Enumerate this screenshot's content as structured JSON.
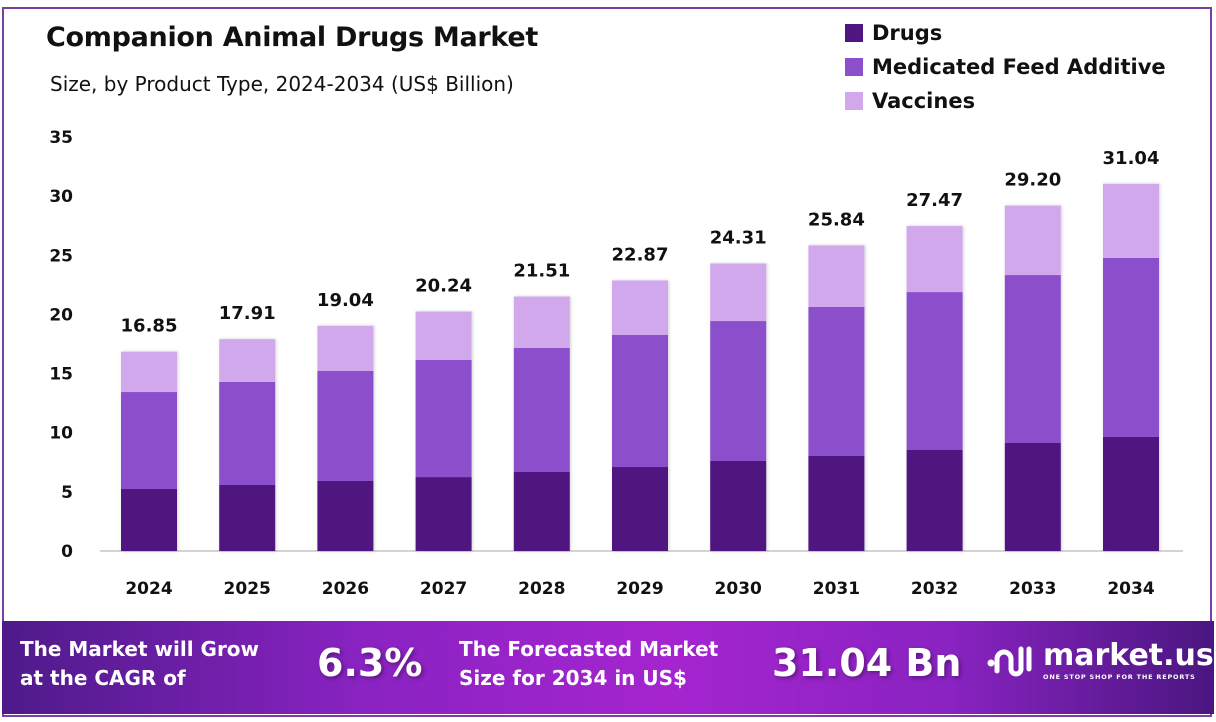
{
  "header": {
    "title": "Companion Animal Drugs Market",
    "subtitle": "Size, by Product Type, 2024-2034 (US$ Billion)"
  },
  "legend": [
    {
      "label": "Drugs",
      "color": "#4f1680"
    },
    {
      "label": "Medicated Feed Additive",
      "color": "#8b4fcc"
    },
    {
      "label": "Vaccines",
      "color": "#d1a8ec"
    }
  ],
  "chart_data": {
    "type": "bar",
    "stacked": true,
    "title": "Companion Animal Drugs Market",
    "subtitle": "Size, by Product Type, 2024-2034 (US$ Billion)",
    "xlabel": "",
    "ylabel": "",
    "categories": [
      "2024",
      "2025",
      "2026",
      "2027",
      "2028",
      "2029",
      "2030",
      "2031",
      "2032",
      "2033",
      "2034"
    ],
    "series": [
      {
        "name": "Drugs",
        "color": "#4f1680",
        "values": [
          5.24,
          5.58,
          5.92,
          6.25,
          6.68,
          7.1,
          7.61,
          8.03,
          8.54,
          9.13,
          9.64
        ]
      },
      {
        "name": "Medicated Feed Additive",
        "color": "#8b4fcc",
        "values": [
          8.2,
          8.71,
          9.3,
          9.9,
          10.48,
          11.16,
          11.83,
          12.6,
          13.35,
          14.2,
          15.13
        ]
      },
      {
        "name": "Vaccines",
        "color": "#d1a8ec",
        "values": [
          3.41,
          3.62,
          3.82,
          4.09,
          4.35,
          4.61,
          4.87,
          5.21,
          5.58,
          5.87,
          6.27
        ]
      }
    ],
    "totals": [
      "16.85",
      "17.91",
      "19.04",
      "20.24",
      "21.51",
      "22.87",
      "24.31",
      "25.84",
      "27.47",
      "29.20",
      "31.04"
    ],
    "yticks": [
      "0",
      "5",
      "10",
      "15",
      "20",
      "25",
      "30",
      "35"
    ],
    "ylim": [
      0,
      35
    ],
    "grid": false,
    "legend_position": "top-right"
  },
  "banner": {
    "cagr_text_line1": "The Market will Grow",
    "cagr_text_line2": "at the CAGR of",
    "cagr_value": "6.3%",
    "forecast_text_line1": "The Forecasted Market",
    "forecast_text_line2": "Size for 2034 in US$",
    "forecast_value": "31.04 Bn",
    "brand_name": "market.us",
    "brand_tagline": "ONE STOP SHOP FOR THE REPORTS"
  }
}
